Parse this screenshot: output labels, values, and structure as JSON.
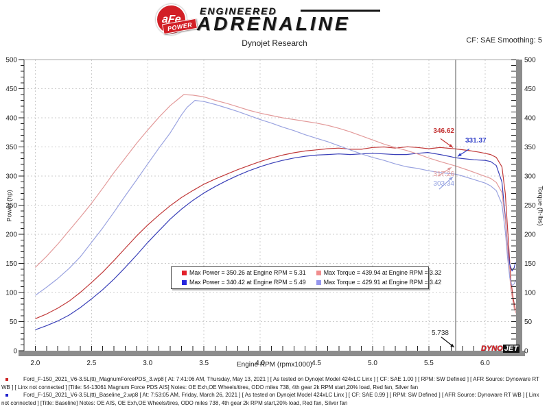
{
  "header": {
    "badge_top": "aFe",
    "badge_bottom": "POWER",
    "brand_engineered": "ENGINEERED",
    "brand_adrenaline": "ADRENALINE",
    "title": "Dynojet Research",
    "cf_label": "CF: SAE Smoothing: 5"
  },
  "chart_data": {
    "type": "line",
    "title": "",
    "xlabel": "Engine RPM (rpmx1000)",
    "ylabel_left": "Power (hp)",
    "ylabel_right": "Torque (ft-lbs)",
    "grid": true,
    "legend_position": "center-bottom-box",
    "axes": {
      "x": {
        "min": 1.9,
        "max": 6.3,
        "grid_major": 0.5,
        "tick_minor": 0.1,
        "labels_from": 2.0,
        "labels_to": 6.0
      },
      "y": {
        "min": 0,
        "max": 500,
        "grid_major": 50,
        "tick_minor": 10
      }
    },
    "cursor": {
      "rpm": 5.738,
      "label": "5.738",
      "color": "#555555"
    },
    "series": [
      {
        "name": "Power - MagnumForce PDS run",
        "unit": "hp",
        "color": "#c13a3a",
        "max": {
          "value": 350.26,
          "rpm": 5.31
        },
        "points": [
          [
            2.0,
            55
          ],
          [
            2.1,
            63
          ],
          [
            2.2,
            73
          ],
          [
            2.3,
            85
          ],
          [
            2.4,
            100
          ],
          [
            2.5,
            117
          ],
          [
            2.6,
            135
          ],
          [
            2.7,
            155
          ],
          [
            2.8,
            176
          ],
          [
            2.9,
            197
          ],
          [
            3.0,
            216
          ],
          [
            3.1,
            233
          ],
          [
            3.2,
            249
          ],
          [
            3.3,
            263
          ],
          [
            3.4,
            275
          ],
          [
            3.5,
            286
          ],
          [
            3.6,
            295
          ],
          [
            3.7,
            303
          ],
          [
            3.8,
            311
          ],
          [
            3.9,
            318
          ],
          [
            4.0,
            325
          ],
          [
            4.1,
            331
          ],
          [
            4.2,
            336
          ],
          [
            4.3,
            340
          ],
          [
            4.4,
            343
          ],
          [
            4.5,
            345
          ],
          [
            4.6,
            347
          ],
          [
            4.7,
            348
          ],
          [
            4.8,
            346
          ],
          [
            4.9,
            346
          ],
          [
            5.0,
            349
          ],
          [
            5.1,
            350
          ],
          [
            5.2,
            348
          ],
          [
            5.31,
            350.26
          ],
          [
            5.4,
            349
          ],
          [
            5.5,
            347
          ],
          [
            5.6,
            349
          ],
          [
            5.738,
            346.62
          ],
          [
            5.85,
            344
          ],
          [
            5.95,
            341
          ],
          [
            6.05,
            337
          ],
          [
            6.1,
            332
          ],
          [
            6.15,
            316
          ],
          [
            6.18,
            270
          ],
          [
            6.21,
            180
          ],
          [
            6.23,
            120
          ],
          [
            6.25,
            90
          ],
          [
            6.27,
            70
          ]
        ]
      },
      {
        "name": "Power - Baseline run",
        "unit": "hp",
        "color": "#3a40b8",
        "max": {
          "value": 340.42,
          "rpm": 5.49
        },
        "points": [
          [
            2.0,
            36
          ],
          [
            2.1,
            43
          ],
          [
            2.2,
            51
          ],
          [
            2.3,
            61
          ],
          [
            2.4,
            74
          ],
          [
            2.5,
            89
          ],
          [
            2.6,
            105
          ],
          [
            2.7,
            123
          ],
          [
            2.8,
            143
          ],
          [
            2.9,
            164
          ],
          [
            3.0,
            186
          ],
          [
            3.1,
            206
          ],
          [
            3.2,
            226
          ],
          [
            3.3,
            243
          ],
          [
            3.4,
            258
          ],
          [
            3.5,
            271
          ],
          [
            3.6,
            282
          ],
          [
            3.7,
            292
          ],
          [
            3.8,
            301
          ],
          [
            3.9,
            309
          ],
          [
            4.0,
            316
          ],
          [
            4.1,
            322
          ],
          [
            4.2,
            327
          ],
          [
            4.3,
            331
          ],
          [
            4.4,
            334
          ],
          [
            4.5,
            336
          ],
          [
            4.6,
            337
          ],
          [
            4.7,
            338
          ],
          [
            4.8,
            337
          ],
          [
            4.9,
            338
          ],
          [
            5.0,
            339
          ],
          [
            5.1,
            338
          ],
          [
            5.2,
            337
          ],
          [
            5.3,
            337
          ],
          [
            5.4,
            339
          ],
          [
            5.49,
            340.42
          ],
          [
            5.6,
            337
          ],
          [
            5.7,
            333
          ],
          [
            5.738,
            331.37
          ],
          [
            5.8,
            330
          ],
          [
            5.9,
            328
          ],
          [
            6.0,
            327
          ],
          [
            6.05,
            325
          ],
          [
            6.1,
            318
          ],
          [
            6.15,
            290
          ],
          [
            6.18,
            230
          ],
          [
            6.2,
            180
          ],
          [
            6.22,
            148
          ],
          [
            6.24,
            137
          ],
          [
            6.26,
            143
          ],
          [
            6.27,
            152
          ]
        ]
      },
      {
        "name": "Torque - MagnumForce PDS run",
        "unit": "ft-lbs",
        "color": "#e39b9b",
        "max": {
          "value": 439.94,
          "rpm": 3.32
        },
        "points": [
          [
            2.0,
            143
          ],
          [
            2.1,
            162
          ],
          [
            2.2,
            183
          ],
          [
            2.3,
            206
          ],
          [
            2.4,
            229
          ],
          [
            2.5,
            253
          ],
          [
            2.6,
            279
          ],
          [
            2.7,
            306
          ],
          [
            2.8,
            331
          ],
          [
            2.9,
            356
          ],
          [
            3.0,
            379
          ],
          [
            3.1,
            401
          ],
          [
            3.2,
            421
          ],
          [
            3.32,
            439.94
          ],
          [
            3.4,
            439
          ],
          [
            3.5,
            436
          ],
          [
            3.6,
            430
          ],
          [
            3.7,
            425
          ],
          [
            3.8,
            419
          ],
          [
            3.9,
            413
          ],
          [
            4.0,
            408
          ],
          [
            4.1,
            404
          ],
          [
            4.2,
            400
          ],
          [
            4.3,
            397
          ],
          [
            4.4,
            394
          ],
          [
            4.5,
            391
          ],
          [
            4.6,
            387
          ],
          [
            4.7,
            382
          ],
          [
            4.8,
            376
          ],
          [
            4.9,
            369
          ],
          [
            5.0,
            362
          ],
          [
            5.1,
            355
          ],
          [
            5.2,
            349
          ],
          [
            5.3,
            344
          ],
          [
            5.4,
            338
          ],
          [
            5.5,
            331
          ],
          [
            5.6,
            325
          ],
          [
            5.738,
            317.26
          ],
          [
            5.85,
            310
          ],
          [
            5.95,
            303
          ],
          [
            6.05,
            296
          ],
          [
            6.1,
            289
          ],
          [
            6.15,
            272
          ],
          [
            6.18,
            225
          ],
          [
            6.21,
            150
          ],
          [
            6.23,
            105
          ],
          [
            6.26,
            72
          ],
          [
            6.28,
            63
          ]
        ]
      },
      {
        "name": "Torque - Baseline run",
        "unit": "ft-lbs",
        "color": "#9aa3e0",
        "max": {
          "value": 429.91,
          "rpm": 3.42
        },
        "points": [
          [
            2.0,
            95
          ],
          [
            2.1,
            109
          ],
          [
            2.2,
            124
          ],
          [
            2.3,
            141
          ],
          [
            2.4,
            161
          ],
          [
            2.5,
            186
          ],
          [
            2.6,
            211
          ],
          [
            2.7,
            238
          ],
          [
            2.8,
            266
          ],
          [
            2.9,
            293
          ],
          [
            3.0,
            321
          ],
          [
            3.1,
            348
          ],
          [
            3.2,
            374
          ],
          [
            3.3,
            405
          ],
          [
            3.35,
            418
          ],
          [
            3.42,
            429.91
          ],
          [
            3.5,
            428
          ],
          [
            3.6,
            423
          ],
          [
            3.7,
            417
          ],
          [
            3.8,
            411
          ],
          [
            3.9,
            404
          ],
          [
            4.0,
            397
          ],
          [
            4.1,
            391
          ],
          [
            4.2,
            384
          ],
          [
            4.3,
            378
          ],
          [
            4.4,
            371
          ],
          [
            4.5,
            365
          ],
          [
            4.6,
            359
          ],
          [
            4.7,
            352
          ],
          [
            4.8,
            345
          ],
          [
            4.9,
            338
          ],
          [
            5.0,
            332
          ],
          [
            5.1,
            327
          ],
          [
            5.2,
            321
          ],
          [
            5.3,
            316
          ],
          [
            5.4,
            313
          ],
          [
            5.5,
            309
          ],
          [
            5.6,
            306
          ],
          [
            5.7,
            304
          ],
          [
            5.738,
            303.34
          ],
          [
            5.8,
            300
          ],
          [
            5.9,
            294
          ],
          [
            6.0,
            288
          ],
          [
            6.05,
            283
          ],
          [
            6.1,
            275
          ],
          [
            6.15,
            252
          ],
          [
            6.18,
            205
          ],
          [
            6.2,
            160
          ],
          [
            6.22,
            125
          ],
          [
            6.24,
            112
          ],
          [
            6.26,
            115
          ],
          [
            6.28,
            123
          ]
        ]
      }
    ]
  },
  "legend": {
    "entries": [
      {
        "swatch": "#e3202a",
        "label": "Max Power = 350.26 at Engine RPM = 5.31"
      },
      {
        "swatch": "#f08d8d",
        "label": "Max Torque = 439.94 at Engine RPM = 3.32"
      },
      {
        "swatch": "#2525dd",
        "label": "Max Power = 340.42 at Engine RPM = 5.49"
      },
      {
        "swatch": "#9596ee",
        "label": "Max Torque = 429.91 at Engine RPM = 3.42"
      }
    ]
  },
  "annotations": {
    "readouts": [
      {
        "text": "346.62",
        "value": 346.62,
        "color": "#c43434"
      },
      {
        "text": "331.37",
        "value": 331.37,
        "color": "#3240c8"
      },
      {
        "text": "317.26",
        "value": 317.26,
        "color": "#e09b9b"
      },
      {
        "text": "303.34",
        "value": 303.34,
        "color": "#92a0e0"
      }
    ],
    "cursor_text": "5.738"
  },
  "dynojet_logo": {
    "part1": "DYNO",
    "part2": "JET"
  },
  "footer": {
    "runs": [
      {
        "bullet_color": "#cc2222",
        "text": "Ford_F-150_2021_V6-3.5L(tt)_MagnumForcePDS_3.wp8 [ At: 7:41:06 AM, Thursday, May 13, 2021 ] [ As tested on Dynojet Model 424xLC Linx ] [ CF: SAE 1.00 ] [ RPM: SW Defined ] [ AFR Source: Dynoware RT WB ] [ Linx not connected ] [Title: 54-13061 Magnum Force PDS AIS]  Notes: OE Exh,OE Wheels/tires, ODO miles 738, 4th gear 2k RPM start,20% load, Red fan, Silver fan"
      },
      {
        "bullet_color": "#2222cc",
        "text": "Ford_F-150_2021_V6-3.5L(tt)_Baseline_2.wp8 [ At: 7:53:05 AM, Friday, March 26, 2021 ] [ As tested on Dynojet Model 424xLC Linx ] [ CF: SAE 0.99 ] [ RPM: SW Defined ] [ AFR Source: Dynoware RT WB ] [ Linx not connected ] [Title: Baseline]  Notes: OE AIS, OE Exh,OE Wheels/tires, ODO miles 738, 4th gear 2k RPM start,20% load, Red fan, Silver fan"
      }
    ]
  }
}
